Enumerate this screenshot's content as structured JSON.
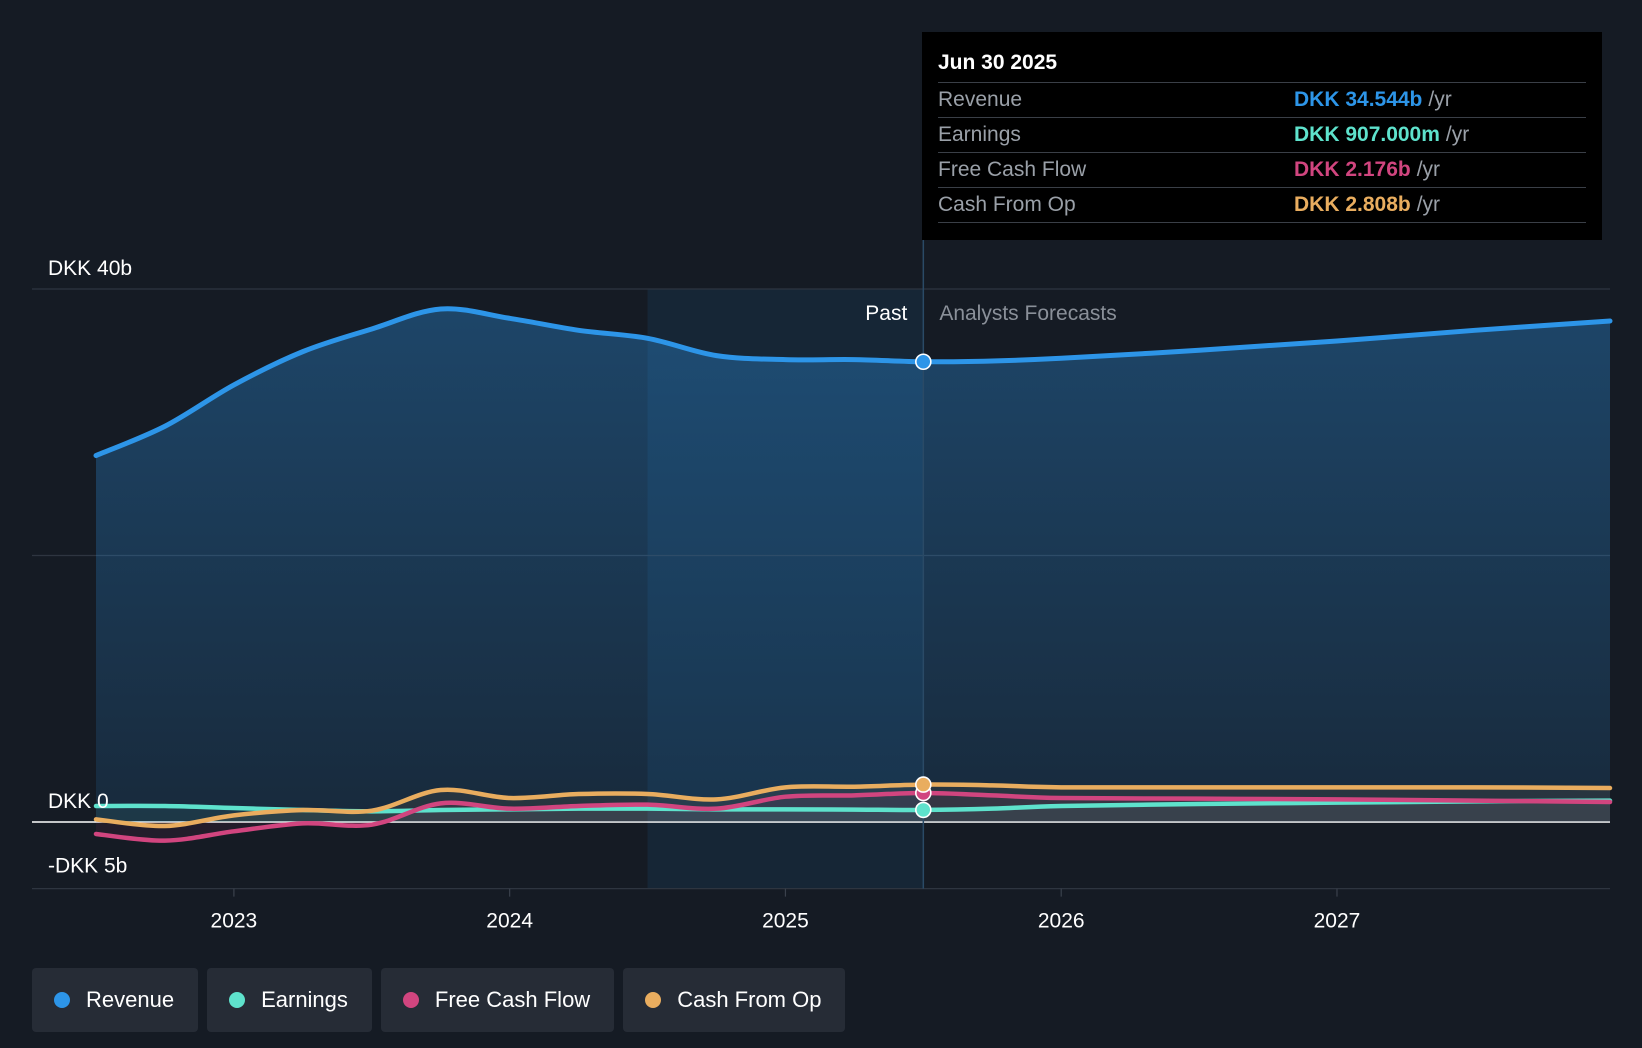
{
  "chart_data": {
    "type": "line",
    "title": "",
    "y_axis": {
      "min": -5,
      "max": 40,
      "unit": "DKK b",
      "labels": [
        "DKK 40b",
        "DKK 0",
        "-DKK 5b"
      ],
      "label_values": [
        40,
        0,
        -5
      ]
    },
    "x_axis": {
      "ticks": [
        "2023",
        "2024",
        "2025",
        "2026",
        "2027"
      ],
      "tick_values": [
        2023.0,
        2024.0,
        2025.0,
        2026.0,
        2027.0
      ],
      "range": [
        2022.5,
        2027.99
      ]
    },
    "divider": {
      "past_label": "Past",
      "forecast_label": "Analysts Forecasts",
      "at": 2025.5,
      "shade_start": 2024.5
    },
    "series": [
      {
        "name": "Revenue",
        "color": "#2d95e8",
        "fill": true,
        "points": [
          [
            2022.5,
            27.5
          ],
          [
            2022.75,
            29.7
          ],
          [
            2023.0,
            32.8
          ],
          [
            2023.25,
            35.3
          ],
          [
            2023.5,
            37.0
          ],
          [
            2023.75,
            38.5
          ],
          [
            2024.0,
            37.8
          ],
          [
            2024.25,
            36.9
          ],
          [
            2024.5,
            36.3
          ],
          [
            2024.75,
            35.0
          ],
          [
            2025.0,
            34.7
          ],
          [
            2025.25,
            34.7
          ],
          [
            2025.5,
            34.54
          ],
          [
            2025.75,
            34.6
          ],
          [
            2026.0,
            34.8
          ],
          [
            2026.5,
            35.4
          ],
          [
            2027.0,
            36.1
          ],
          [
            2027.5,
            36.9
          ],
          [
            2027.99,
            37.6
          ]
        ]
      },
      {
        "name": "Earnings",
        "color": "#5ee2cc",
        "fill": false,
        "points": [
          [
            2022.5,
            1.2
          ],
          [
            2022.75,
            1.2
          ],
          [
            2023.0,
            1.05
          ],
          [
            2023.25,
            0.9
          ],
          [
            2023.5,
            0.8
          ],
          [
            2023.75,
            0.9
          ],
          [
            2024.0,
            0.95
          ],
          [
            2024.25,
            1.0
          ],
          [
            2024.5,
            1.0
          ],
          [
            2024.75,
            0.95
          ],
          [
            2025.0,
            0.95
          ],
          [
            2025.25,
            0.93
          ],
          [
            2025.5,
            0.907
          ],
          [
            2025.75,
            1.0
          ],
          [
            2026.0,
            1.2
          ],
          [
            2026.5,
            1.35
          ],
          [
            2027.0,
            1.45
          ],
          [
            2027.5,
            1.55
          ],
          [
            2027.99,
            1.6
          ]
        ]
      },
      {
        "name": "Free Cash Flow",
        "color": "#d1457f",
        "fill": false,
        "points": [
          [
            2022.5,
            -0.9
          ],
          [
            2022.75,
            -1.4
          ],
          [
            2023.0,
            -0.7
          ],
          [
            2023.25,
            -0.1
          ],
          [
            2023.5,
            -0.2
          ],
          [
            2023.75,
            1.4
          ],
          [
            2024.0,
            1.0
          ],
          [
            2024.25,
            1.2
          ],
          [
            2024.5,
            1.3
          ],
          [
            2024.75,
            1.0
          ],
          [
            2025.0,
            1.9
          ],
          [
            2025.25,
            2.0
          ],
          [
            2025.5,
            2.176
          ],
          [
            2025.75,
            2.0
          ],
          [
            2026.0,
            1.8
          ],
          [
            2026.5,
            1.75
          ],
          [
            2027.0,
            1.7
          ],
          [
            2027.5,
            1.6
          ],
          [
            2027.99,
            1.5
          ]
        ]
      },
      {
        "name": "Cash From Op",
        "color": "#e9ad5f",
        "fill": false,
        "points": [
          [
            2022.5,
            0.2
          ],
          [
            2022.75,
            -0.3
          ],
          [
            2023.0,
            0.5
          ],
          [
            2023.25,
            0.9
          ],
          [
            2023.5,
            0.85
          ],
          [
            2023.75,
            2.4
          ],
          [
            2024.0,
            1.8
          ],
          [
            2024.25,
            2.1
          ],
          [
            2024.5,
            2.1
          ],
          [
            2024.75,
            1.7
          ],
          [
            2025.0,
            2.6
          ],
          [
            2025.25,
            2.65
          ],
          [
            2025.5,
            2.808
          ],
          [
            2025.75,
            2.75
          ],
          [
            2026.0,
            2.6
          ],
          [
            2026.5,
            2.6
          ],
          [
            2027.0,
            2.6
          ],
          [
            2027.5,
            2.6
          ],
          [
            2027.99,
            2.55
          ]
        ]
      }
    ],
    "tooltip": {
      "date": "Jun 30 2025",
      "rows": [
        {
          "label": "Revenue",
          "value": "DKK 34.544b",
          "unit": "/yr",
          "color": "#2d95e8"
        },
        {
          "label": "Earnings",
          "value": "DKK 907.000m",
          "unit": "/yr",
          "color": "#5ee2cc"
        },
        {
          "label": "Free Cash Flow",
          "value": "DKK 2.176b",
          "unit": "/yr",
          "color": "#d1457f"
        },
        {
          "label": "Cash From Op",
          "value": "DKK 2.808b",
          "unit": "/yr",
          "color": "#e9ad5f"
        }
      ]
    }
  },
  "legend": [
    {
      "label": "Revenue",
      "color": "#2d95e8"
    },
    {
      "label": "Earnings",
      "color": "#5ee2cc"
    },
    {
      "label": "Free Cash Flow",
      "color": "#d1457f"
    },
    {
      "label": "Cash From Op",
      "color": "#e9ad5f"
    }
  ]
}
